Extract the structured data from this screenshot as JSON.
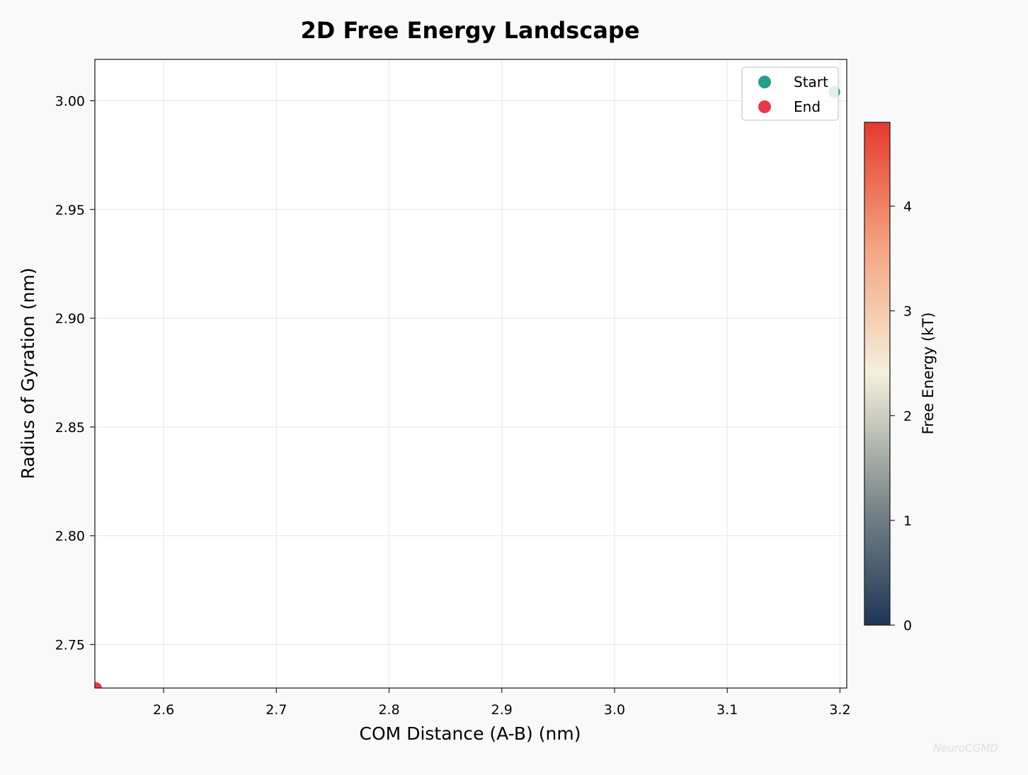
{
  "chart_data": {
    "type": "scatter",
    "title": "2D Free Energy Landscape",
    "xlabel": "COM Distance (A-B) (nm)",
    "ylabel": "Radius of Gyration (nm)",
    "xlim": [
      2.539,
      3.206
    ],
    "ylim": [
      2.73,
      3.019
    ],
    "xticks": [
      "2.6",
      "2.7",
      "2.8",
      "2.9",
      "3.0",
      "3.1",
      "3.2"
    ],
    "yticks": [
      "2.75",
      "2.80",
      "2.85",
      "2.90",
      "2.95",
      "3.00"
    ],
    "grid": true,
    "legend_placement": "top-right",
    "series": [
      {
        "name": "Start",
        "color": "#2a9d8f",
        "points": [
          {
            "x": 3.195,
            "y": 3.004
          }
        ]
      },
      {
        "name": "End",
        "color": "#e63946",
        "points": [
          {
            "x": 2.54,
            "y": 2.73
          }
        ]
      }
    ],
    "colorbar": {
      "label": "Free Energy (kT)",
      "range": [
        0,
        4.8
      ],
      "ticks": [
        "0",
        "1",
        "2",
        "3",
        "4"
      ],
      "colors": [
        "#1d3557",
        "#7f8c8d",
        "#f5f0dc",
        "#f4a582",
        "#e63a2e"
      ]
    }
  },
  "watermark": "NeuroCGMD"
}
